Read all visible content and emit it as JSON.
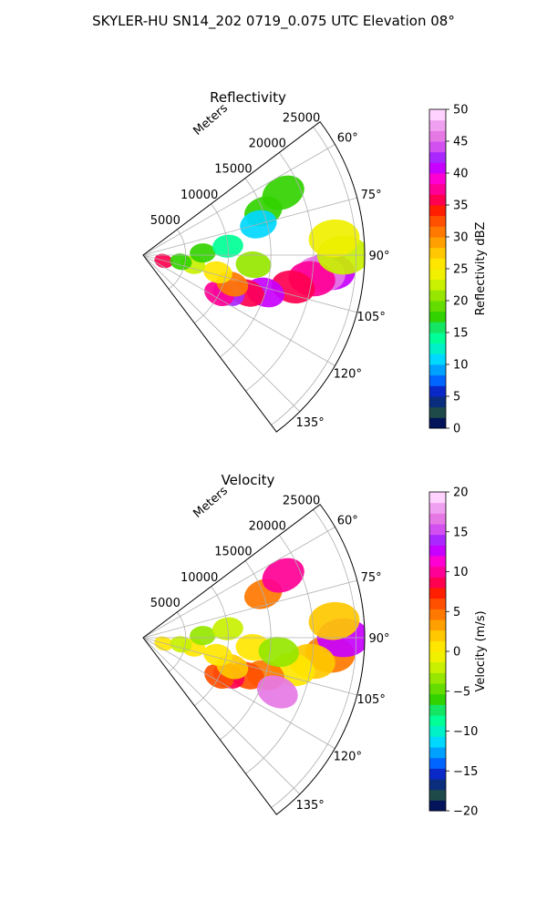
{
  "page": {
    "title": "SKYLER-HU  SN14_202  0719_0.075 UTC Elevation 08°"
  },
  "chart_data": [
    {
      "type": "heatmap",
      "title": "Reflectivity",
      "radial_label": "Meters",
      "radial_ticks": [
        5000,
        10000,
        15000,
        20000,
        25000
      ],
      "rlim": [
        0,
        26000
      ],
      "azimuth_ticks": [
        "60°",
        "75°",
        "90°",
        "105°",
        "120°",
        "135°"
      ],
      "azimuth_range_deg": [
        53,
        143
      ],
      "grid": true,
      "colorbar": {
        "label": "Reflectivity dBZ",
        "ticks": [
          "0",
          "5",
          "10",
          "15",
          "20",
          "25",
          "30",
          "35",
          "40",
          "45",
          "50"
        ],
        "range": [
          0,
          50
        ],
        "colors": [
          "#04145a",
          "#1e4a4a",
          "#0a2d7e",
          "#0a28c8",
          "#0064ff",
          "#00a0ff",
          "#00d8ff",
          "#00f0c8",
          "#00ff96",
          "#14e664",
          "#32d200",
          "#64dc00",
          "#96e600",
          "#c8f000",
          "#f0f000",
          "#ffe600",
          "#ffc800",
          "#ffa000",
          "#ff7800",
          "#ff5000",
          "#ff1e00",
          "#ff0050",
          "#ff0096",
          "#ff00d2",
          "#c800ff",
          "#aa28ff",
          "#d250f0",
          "#e678e6",
          "#f0a0f0",
          "#ffd2ff"
        ]
      },
      "cells": [
        {
          "az": 95,
          "r": 22000,
          "v": 40
        },
        {
          "az": 96,
          "r": 21000,
          "v": 45
        },
        {
          "az": 98,
          "r": 20000,
          "v": 38
        },
        {
          "az": 102,
          "r": 18000,
          "v": 36
        },
        {
          "az": 107,
          "r": 15000,
          "v": 40
        },
        {
          "az": 110,
          "r": 13000,
          "v": 35
        },
        {
          "az": 114,
          "r": 11000,
          "v": 42
        },
        {
          "az": 117,
          "r": 10000,
          "v": 38
        },
        {
          "az": 108,
          "r": 11000,
          "v": 30
        },
        {
          "az": 103,
          "r": 9000,
          "v": 25
        },
        {
          "az": 101,
          "r": 6000,
          "v": 22
        },
        {
          "az": 106,
          "r": 2500,
          "v": 36
        },
        {
          "az": 90,
          "r": 23500,
          "v": 22
        },
        {
          "az": 85,
          "r": 22500,
          "v": 24
        },
        {
          "az": 88,
          "r": 7000,
          "v": 18
        },
        {
          "az": 84,
          "r": 10000,
          "v": 14
        },
        {
          "az": 95,
          "r": 13000,
          "v": 20
        },
        {
          "az": 70,
          "r": 15000,
          "v": 18
        },
        {
          "az": 66,
          "r": 18000,
          "v": 18
        },
        {
          "az": 75,
          "r": 14000,
          "v": 10
        },
        {
          "az": 100,
          "r": 4500,
          "v": 18
        }
      ]
    },
    {
      "type": "heatmap",
      "title": "Velocity",
      "radial_label": "Meters",
      "radial_ticks": [
        5000,
        10000,
        15000,
        20000,
        25000
      ],
      "rlim": [
        0,
        26000
      ],
      "azimuth_ticks": [
        "60°",
        "75°",
        "90°",
        "105°",
        "120°",
        "135°"
      ],
      "azimuth_range_deg": [
        53,
        143
      ],
      "grid": true,
      "colorbar": {
        "label": "Velocity (m/s)",
        "ticks": [
          "−20",
          "−15",
          "−10",
          "−5",
          "0",
          "5",
          "10",
          "15",
          "20"
        ],
        "range": [
          -20,
          20
        ],
        "colors": [
          "#04145a",
          "#1e4a4a",
          "#0a2d7e",
          "#0a28c8",
          "#0064ff",
          "#00a0ff",
          "#00d8ff",
          "#00f0c8",
          "#00ff96",
          "#14e664",
          "#32d200",
          "#64dc00",
          "#96e600",
          "#c8f000",
          "#f0f000",
          "#ffe600",
          "#ffc800",
          "#ffa000",
          "#ff7800",
          "#ff5000",
          "#ff1e00",
          "#ff0050",
          "#ff0096",
          "#ff00d2",
          "#c800ff",
          "#aa28ff",
          "#d250f0",
          "#e678e6",
          "#f0a0f0",
          "#ffd2ff"
        ]
      },
      "cells": [
        {
          "az": 95,
          "r": 22000,
          "v": 4
        },
        {
          "az": 90,
          "r": 23500,
          "v": 12
        },
        {
          "az": 98,
          "r": 20000,
          "v": 2
        },
        {
          "az": 102,
          "r": 18000,
          "v": 0
        },
        {
          "az": 107,
          "r": 15000,
          "v": 4
        },
        {
          "az": 110,
          "r": 13000,
          "v": 6
        },
        {
          "az": 114,
          "r": 11000,
          "v": 8
        },
        {
          "az": 117,
          "r": 10000,
          "v": 6
        },
        {
          "az": 108,
          "r": 11000,
          "v": 2
        },
        {
          "az": 103,
          "r": 9000,
          "v": 1
        },
        {
          "az": 101,
          "r": 6000,
          "v": 0
        },
        {
          "az": 106,
          "r": 2500,
          "v": 0
        },
        {
          "az": 85,
          "r": 22500,
          "v": 2
        },
        {
          "az": 88,
          "r": 7000,
          "v": -3
        },
        {
          "az": 84,
          "r": 10000,
          "v": -2
        },
        {
          "az": 95,
          "r": 13000,
          "v": 1
        },
        {
          "az": 70,
          "r": 15000,
          "v": 4
        },
        {
          "az": 66,
          "r": 18000,
          "v": 10
        },
        {
          "az": 100,
          "r": 4500,
          "v": -2
        },
        {
          "az": 96,
          "r": 16000,
          "v": -3
        },
        {
          "az": 112,
          "r": 17000,
          "v": 16
        }
      ]
    }
  ]
}
